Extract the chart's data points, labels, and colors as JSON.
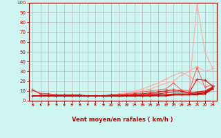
{
  "xlabel": "Vent moyen/en rafales ( km/h )",
  "xlim": [
    -0.5,
    23.5
  ],
  "ylim": [
    0,
    100
  ],
  "xticks": [
    0,
    1,
    2,
    3,
    4,
    5,
    6,
    7,
    8,
    9,
    10,
    11,
    12,
    13,
    14,
    15,
    16,
    17,
    18,
    19,
    20,
    21,
    22,
    23
  ],
  "yticks": [
    0,
    10,
    20,
    30,
    40,
    50,
    60,
    70,
    80,
    90,
    100
  ],
  "background_color": "#cef5ef",
  "grid_color": "#aaaaaa",
  "lines": [
    {
      "x": [
        0,
        1,
        2,
        3,
        4,
        5,
        6,
        7,
        8,
        9,
        10,
        11,
        12,
        13,
        14,
        15,
        16,
        17,
        18,
        19,
        20,
        21,
        22,
        23
      ],
      "y": [
        5,
        5,
        5,
        5,
        5,
        5,
        5,
        5,
        5,
        5,
        5,
        5,
        5,
        5,
        6,
        7,
        8,
        10,
        12,
        10,
        9,
        100,
        50,
        33
      ],
      "color": "#ffaaaa",
      "lw": 0.8,
      "marker": "+",
      "ms": 2.5,
      "mew": 0.7
    },
    {
      "x": [
        0,
        1,
        2,
        3,
        4,
        5,
        6,
        7,
        8,
        9,
        10,
        11,
        12,
        13,
        14,
        15,
        16,
        17,
        18,
        19,
        20,
        21,
        22,
        23
      ],
      "y": [
        5,
        5,
        5,
        5,
        5,
        5,
        5,
        5,
        5,
        5,
        6,
        7,
        8,
        10,
        12,
        15,
        18,
        22,
        26,
        29,
        25,
        20,
        15,
        16
      ],
      "color": "#ffaaaa",
      "lw": 0.8,
      "marker": "+",
      "ms": 2.5,
      "mew": 0.7
    },
    {
      "x": [
        0,
        1,
        2,
        3,
        4,
        5,
        6,
        7,
        8,
        9,
        10,
        11,
        12,
        13,
        14,
        15,
        16,
        17,
        18,
        19,
        20,
        21,
        22,
        23
      ],
      "y": [
        11,
        8,
        7,
        6,
        6,
        6,
        5,
        5,
        5,
        5,
        6,
        7,
        8,
        9,
        10,
        12,
        15,
        18,
        20,
        26,
        30,
        35,
        30,
        32
      ],
      "color": "#ffaaaa",
      "lw": 0.8,
      "marker": "+",
      "ms": 2.5,
      "mew": 0.7
    },
    {
      "x": [
        0,
        1,
        2,
        3,
        4,
        5,
        6,
        7,
        8,
        9,
        10,
        11,
        12,
        13,
        14,
        15,
        16,
        17,
        18,
        19,
        20,
        21,
        22,
        23
      ],
      "y": [
        5,
        5,
        5,
        5,
        5,
        5,
        5,
        5,
        5,
        5,
        5,
        6,
        7,
        8,
        9,
        10,
        11,
        12,
        18,
        11,
        10,
        34,
        14,
        16
      ],
      "color": "#ff6666",
      "lw": 0.8,
      "marker": "+",
      "ms": 2.5,
      "mew": 0.7
    },
    {
      "x": [
        0,
        1,
        2,
        3,
        4,
        5,
        6,
        7,
        8,
        9,
        10,
        11,
        12,
        13,
        14,
        15,
        16,
        17,
        18,
        19,
        20,
        21,
        22,
        23
      ],
      "y": [
        11,
        7,
        7,
        6,
        6,
        6,
        6,
        5,
        5,
        5,
        6,
        6,
        6,
        7,
        7,
        8,
        9,
        10,
        11,
        10,
        8,
        22,
        21,
        15
      ],
      "color": "#dd2222",
      "lw": 0.9,
      "marker": "+",
      "ms": 2.5,
      "mew": 0.8
    },
    {
      "x": [
        0,
        1,
        2,
        3,
        4,
        5,
        6,
        7,
        8,
        9,
        10,
        11,
        12,
        13,
        14,
        15,
        16,
        17,
        18,
        19,
        20,
        21,
        22,
        23
      ],
      "y": [
        5,
        5,
        5,
        5,
        5,
        5,
        5,
        5,
        5,
        5,
        5,
        5,
        5,
        6,
        6,
        7,
        7,
        8,
        9,
        9,
        8,
        9,
        10,
        14
      ],
      "color": "#dd2222",
      "lw": 0.9,
      "marker": "+",
      "ms": 2.0,
      "mew": 0.7
    },
    {
      "x": [
        0,
        1,
        2,
        3,
        4,
        5,
        6,
        7,
        8,
        9,
        10,
        11,
        12,
        13,
        14,
        15,
        16,
        17,
        18,
        19,
        20,
        21,
        22,
        23
      ],
      "y": [
        5,
        5,
        5,
        5,
        5,
        5,
        5,
        5,
        5,
        5,
        5,
        5,
        5,
        5,
        5,
        6,
        6,
        6,
        7,
        7,
        7,
        8,
        9,
        14
      ],
      "color": "#dd2222",
      "lw": 0.9,
      "marker": "+",
      "ms": 2.0,
      "mew": 0.7
    },
    {
      "x": [
        0,
        1,
        2,
        3,
        4,
        5,
        6,
        7,
        8,
        9,
        10,
        11,
        12,
        13,
        14,
        15,
        16,
        17,
        18,
        19,
        20,
        21,
        22,
        23
      ],
      "y": [
        5,
        5,
        5,
        5,
        5,
        5,
        5,
        5,
        5,
        5,
        5,
        5,
        5,
        5,
        5,
        5,
        6,
        6,
        6,
        6,
        6,
        7,
        8,
        13
      ],
      "color": "#cc0000",
      "lw": 1.0,
      "marker": "+",
      "ms": 2.0,
      "mew": 0.8
    },
    {
      "x": [
        0,
        1,
        2,
        3,
        4,
        5,
        6,
        7,
        8,
        9,
        10,
        11,
        12,
        13,
        14,
        15,
        16,
        17,
        18,
        19,
        20,
        21,
        22,
        23
      ],
      "y": [
        5,
        5,
        5,
        5,
        5,
        5,
        5,
        5,
        5,
        5,
        5,
        5,
        5,
        5,
        5,
        5,
        5,
        5,
        6,
        6,
        6,
        6,
        7,
        12
      ],
      "color": "#cc0000",
      "lw": 1.0,
      "marker": "+",
      "ms": 2.0,
      "mew": 0.8
    }
  ],
  "arrow_color": "#cc0000",
  "axis_label_color": "#cc0000",
  "tick_color": "#cc0000",
  "spine_color": "#880000",
  "num_arrows": 24,
  "arrow_angles_deg": [
    -150,
    -150,
    -135,
    -135,
    -135,
    -135,
    -135,
    -135,
    -90,
    -135,
    -150,
    -150,
    -135,
    -120,
    -135,
    -135,
    -120,
    -135,
    -90,
    -135,
    -120,
    -100,
    -90,
    -150
  ]
}
